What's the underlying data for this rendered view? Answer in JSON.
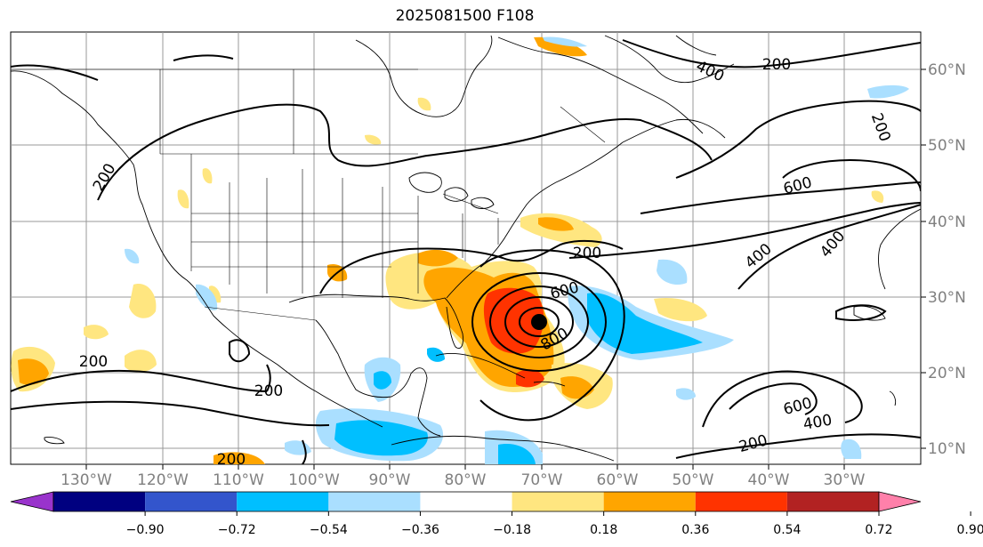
{
  "title": "2025081500 F108",
  "longitude_labels": [
    "130°W",
    "120°W",
    "110°W",
    "100°W",
    "90°W",
    "80°W",
    "70°W",
    "60°W",
    "50°W",
    "40°W",
    "30°W"
  ],
  "latitude_labels": [
    "60°N",
    "50°N",
    "40°N",
    "30°N",
    "20°N",
    "10°N"
  ],
  "contour_labels": [
    "200",
    "200",
    "200",
    "200",
    "200",
    "200",
    "200",
    "200",
    "400",
    "400",
    "400",
    "400",
    "600",
    "600",
    "600",
    "800"
  ],
  "colorbar": {
    "tick_labels": [
      "−0.90",
      "−0.72",
      "−0.54",
      "−0.36",
      "−0.18",
      "0.18",
      "0.36",
      "0.54",
      "0.72",
      "0.90"
    ],
    "colors": [
      "#9933cc",
      "#000080",
      "#3355cc",
      "#00bfff",
      "#aadfff",
      "#ffffff",
      "#ffe680",
      "#ffa500",
      "#ff3300",
      "#b22222",
      "#ff80aa"
    ]
  }
}
